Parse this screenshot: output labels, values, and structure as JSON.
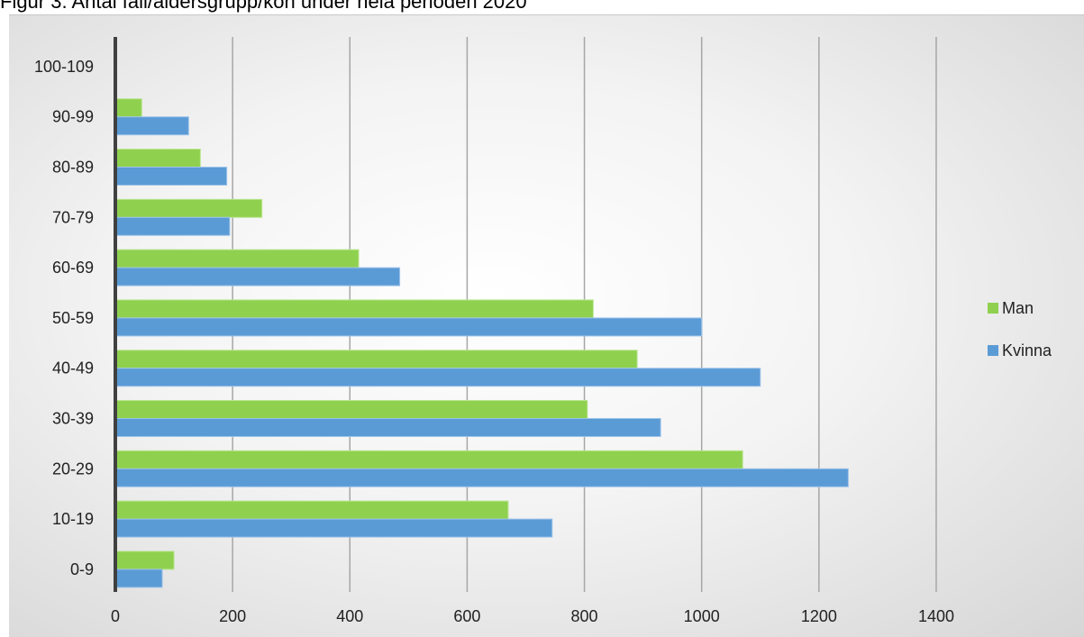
{
  "title": "Figur 3. Antal fall/åldersgrupp/kön under hela perioden 2020",
  "colors": {
    "Man": "#8fd14f",
    "Kvinna": "#5b9bd5"
  },
  "chart_data": {
    "type": "bar",
    "orientation": "horizontal",
    "categories": [
      "0-9",
      "10-19",
      "20-29",
      "30-39",
      "40-49",
      "50-59",
      "60-69",
      "70-79",
      "80-89",
      "90-99",
      "100-109"
    ],
    "series": [
      {
        "name": "Man",
        "values": [
          100,
          670,
          1070,
          805,
          890,
          815,
          415,
          250,
          145,
          45,
          0
        ]
      },
      {
        "name": "Kvinna",
        "values": [
          80,
          745,
          1250,
          930,
          1100,
          1000,
          485,
          195,
          190,
          125,
          0
        ]
      }
    ],
    "xticks": [
      "0",
      "200",
      "400",
      "600",
      "800",
      "1000",
      "1200",
      "1400"
    ],
    "xlim": [
      0,
      1400
    ],
    "grid": true,
    "legend_position": "right"
  }
}
